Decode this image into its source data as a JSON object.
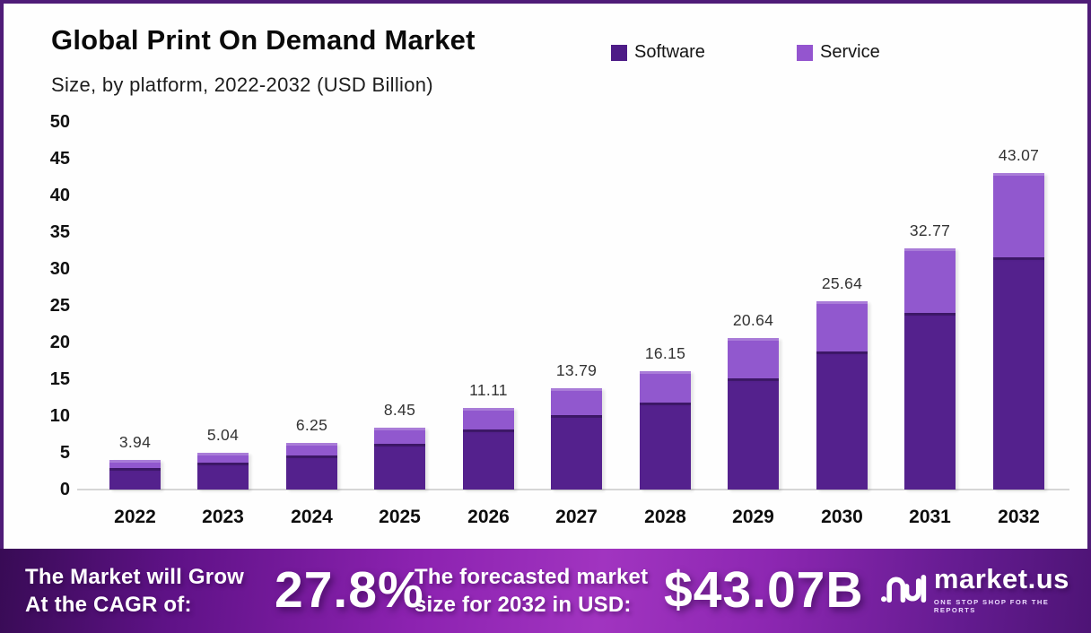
{
  "frame": {
    "border_color": "#4f1c78",
    "background": "#fefefe"
  },
  "header": {
    "title": "Global Print On Demand Market",
    "subtitle": "Size, by platform, 2022-2032 (USD Billion)"
  },
  "legend": [
    {
      "label": "Software",
      "color": "#4e1c87"
    },
    {
      "label": "Service",
      "color": "#9455cf"
    }
  ],
  "chart_data": {
    "type": "bar",
    "stacked": true,
    "title": "Global Print On Demand Market",
    "subtitle": "Size, by platform, 2022-2032 (USD Billion)",
    "unit": "USD Billion",
    "grid": false,
    "legend_position": "top-right",
    "categories": [
      "2022",
      "2023",
      "2024",
      "2025",
      "2026",
      "2027",
      "2028",
      "2029",
      "2030",
      "2031",
      "2032"
    ],
    "series": [
      {
        "name": "Software",
        "color": "#54218d",
        "values": [
          2.89,
          3.7,
          4.59,
          6.2,
          8.15,
          10.12,
          11.85,
          15.15,
          18.82,
          24.05,
          31.61
        ]
      },
      {
        "name": "Service",
        "color": "#9158ce",
        "values": [
          1.05,
          1.34,
          1.66,
          2.25,
          2.96,
          3.67,
          4.3,
          5.49,
          6.82,
          8.72,
          11.46
        ]
      }
    ],
    "totals": [
      3.94,
      5.04,
      6.25,
      8.45,
      11.11,
      13.79,
      16.15,
      20.64,
      25.64,
      32.77,
      43.07
    ],
    "total_labels": [
      "3.94",
      "5.04",
      "6.25",
      "8.45",
      "11.11",
      "13.79",
      "16.15",
      "20.64",
      "25.64",
      "32.77",
      "43.07"
    ],
    "ylim": [
      0,
      50
    ],
    "yticks": [
      0,
      5,
      10,
      15,
      20,
      25,
      30,
      35,
      40,
      45,
      50
    ]
  },
  "banner": {
    "cagr_label_line1": "The Market will Grow",
    "cagr_label_line2": "At the CAGR of:",
    "cagr_value": "27.8%",
    "forecast_label_line1": "The forecasted market",
    "forecast_label_line2": "size for 2032 in USD:",
    "forecast_value": "$43.07B",
    "brand": {
      "name": "market.us",
      "tagline": "ONE STOP SHOP FOR THE REPORTS"
    }
  }
}
